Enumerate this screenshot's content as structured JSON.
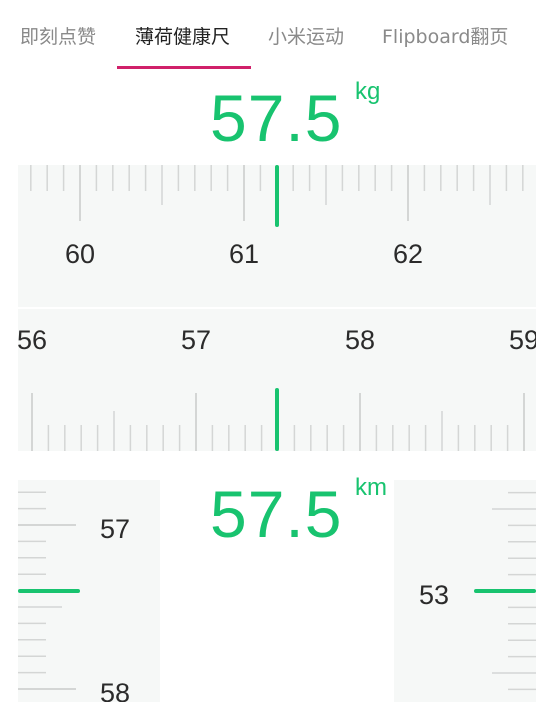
{
  "tabs": [
    {
      "label": "即刻点赞",
      "active": false
    },
    {
      "label": "薄荷健康尺",
      "active": true
    },
    {
      "label": "小米运动",
      "active": false
    },
    {
      "label": "Flipboard翻页",
      "active": false
    }
  ],
  "accent_color": "#18c36f",
  "tab_indicator_color": "#d0206a",
  "weight": {
    "value": "57.5",
    "unit": "kg"
  },
  "ruler_top": {
    "labels": [
      "60",
      "61",
      "62"
    ]
  },
  "ruler_mid": {
    "labels": [
      "56",
      "57",
      "58",
      "59"
    ]
  },
  "distance": {
    "value": "57.5",
    "unit": "km"
  },
  "ruler_left": {
    "labels": [
      "57",
      "58"
    ]
  },
  "ruler_right": {
    "labels": [
      "53"
    ]
  }
}
